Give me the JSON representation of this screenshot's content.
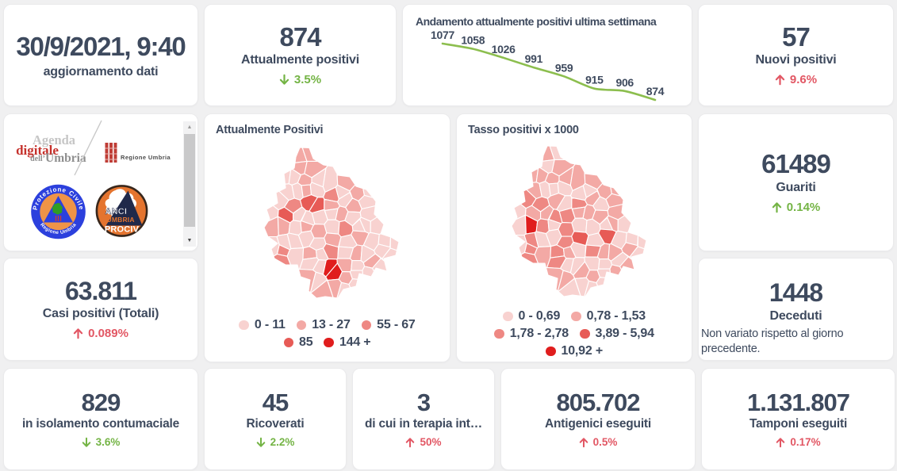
{
  "page": {
    "bg": "#f0f0f1"
  },
  "colors": {
    "dark": "#3e4a5e",
    "good": "#74b445",
    "bad": "#e25764",
    "line": "#8cbe4e",
    "card_bg": "#ffffff",
    "card_border": "#eaeaec"
  },
  "cards": {
    "date": {
      "value": "30/9/2021, 9:40",
      "label": "aggiornamento dati"
    },
    "attualmente_positivi": {
      "value": "874",
      "label": "Attualmente positivi",
      "arrow": "↓",
      "delta": "3.5%",
      "tone": "good"
    },
    "nuovi_positivi": {
      "value": "57",
      "label": "Nuovi positivi",
      "arrow": "↑",
      "delta": "9.6%",
      "tone": "bad"
    },
    "casi_positivi": {
      "value": "63.811",
      "label": "Casi positivi (Totali)",
      "arrow": "↑",
      "delta": "0.089%",
      "tone": "bad"
    },
    "guariti": {
      "value": "61489",
      "label": "Guariti",
      "arrow": "↑",
      "delta": "0.14%",
      "tone": "good"
    },
    "deceduti": {
      "value": "1448",
      "label": "Deceduti",
      "note": "Non variato rispetto al giorno precedente."
    },
    "isolamento": {
      "value": "829",
      "label": "in isolamento contumaciale",
      "arrow": "↓",
      "delta": "3.6%",
      "tone": "good"
    },
    "ricoverati": {
      "value": "45",
      "label": "Ricoverati",
      "arrow": "↓",
      "delta": "2.2%",
      "tone": "good"
    },
    "terapia_intensiva": {
      "value": "3",
      "label": "di cui in terapia int…",
      "arrow": "↑",
      "delta": "50%",
      "tone": "bad"
    },
    "antigenici": {
      "value": "805.702",
      "label": "Antigenici eseguiti",
      "arrow": "↑",
      "delta": "0.5%",
      "tone": "bad"
    },
    "tamponi": {
      "value": "1.131.807",
      "label": "Tamponi eseguiti",
      "arrow": "↑",
      "delta": "0.17%",
      "tone": "bad"
    }
  },
  "chart_data": [
    {
      "type": "line",
      "title": "Andamento attualmente positivi ultima settimana",
      "values": [
        1077,
        1058,
        1026,
        991,
        959,
        915,
        906,
        874
      ],
      "point_labels": [
        "1077",
        "1058",
        "1026",
        "991",
        "959",
        "915",
        "906",
        "874"
      ],
      "line_color": "#8cbe4e",
      "label_color": "#3e4a5e",
      "legend_position": "none",
      "grid": false
    },
    {
      "type": "choropleth",
      "title": "Attualmente Positivi",
      "legend": [
        {
          "label": "0 - 11",
          "color": "#f8d2d0"
        },
        {
          "label": "13 - 27",
          "color": "#f3a9a5"
        },
        {
          "label": "55 - 67",
          "color": "#ee8883"
        },
        {
          "label": "85",
          "color": "#e75b56"
        },
        {
          "label": "144 +",
          "color": "#e01d1d"
        }
      ],
      "legend_rows": [
        [
          0,
          1,
          2
        ],
        [
          3,
          4
        ]
      ],
      "cell_classes": [
        1,
        1,
        1,
        1,
        0,
        0,
        1,
        0,
        0,
        1,
        0,
        0,
        1,
        0,
        2,
        0,
        1,
        0,
        0,
        2,
        3,
        3,
        1,
        0,
        1,
        0,
        0,
        3,
        0,
        0,
        0,
        0,
        1,
        0,
        0,
        1,
        1,
        0,
        1,
        1,
        0,
        2,
        0,
        0,
        0,
        0,
        0,
        0,
        0,
        1,
        0,
        1,
        0,
        0,
        0,
        0,
        2,
        0,
        1,
        0,
        2,
        0,
        1,
        0,
        0,
        0,
        2,
        0,
        0,
        4,
        1,
        0,
        1,
        0,
        1,
        0,
        4,
        1,
        0,
        0,
        1,
        1,
        0,
        0
      ]
    },
    {
      "type": "choropleth",
      "title": "Tasso positivi x 1000",
      "legend": [
        {
          "label": "0 - 0,69",
          "color": "#f8d2d0"
        },
        {
          "label": "0,78 - 1,53",
          "color": "#f3a9a5"
        },
        {
          "label": "1,78 - 2,78",
          "color": "#ee8883"
        },
        {
          "label": "3,89 - 5,94",
          "color": "#e75b56"
        },
        {
          "label": "10,92 +",
          "color": "#e01d1d"
        }
      ],
      "legend_rows": [
        [
          0,
          1
        ],
        [
          2,
          3
        ],
        [
          4
        ]
      ],
      "cell_classes": [
        1,
        0,
        0,
        1,
        1,
        1,
        1,
        1,
        1,
        1,
        1,
        0,
        0,
        0,
        0,
        0,
        1,
        1,
        2,
        2,
        1,
        0,
        2,
        1,
        0,
        1,
        0,
        1,
        1,
        2,
        2,
        1,
        1,
        1,
        1,
        0,
        4,
        2,
        0,
        2,
        0,
        0,
        0,
        1,
        0,
        2,
        0,
        0,
        2,
        3,
        0,
        3,
        0,
        0,
        0,
        0,
        2,
        1,
        2,
        1,
        0,
        2,
        1,
        1,
        1,
        0,
        2,
        2,
        0,
        0,
        0,
        0,
        0,
        1,
        1,
        1,
        1,
        1,
        0,
        1,
        0,
        0,
        0,
        0
      ]
    }
  ],
  "map_geometry": {
    "width": 172,
    "height": 191,
    "cells": [
      "55,18.4 49.2,1.1 46,1 41,13 40,20.3",
      "68.5,18.4 63,15 58,1.5 49.2,1.1 55,18.4",
      "55.2,18.5 40,20.3 39,27 36.6,28.3 47.4,35.5 51.9,34.1",
      "55.2,18.5 51.9,34.1 61,39 79,27 81.3,23.9 76,23 68.5,18.4",
      "34.6,29.4 26,34 27.5,47.2 32.2,46.8",
      "32.2,46.8 36.1,48.4 43.4,45.6 47.4,35.5 36.6,28.3 34.6,29.4",
      "59.3,48 61,45 61,39 51.9,34.1 47.4,35.5 43.4,45.6 48.1,48.9",
      "61,45 75.3,50.7 79,27 61,39",
      "79,27 75.3,50.7 78,57.4 91.3,51.1 93.7,48.4 93.1,34.3 88,25 81.3,23.9",
      "115.8,48.1 109,38 94,36 93.1,34.3 93.7,48.4 109,55.8",
      "32.2,46.8 27.5,47.2 28,52 19.8,56.1 32,67.6 39.2,65 36.1,48.4",
      "43.4,45.6 36.1,48.4 39.2,65 46.5,67.3 50.2,64.1 48.1,48.9",
      "50.2,64.1 60.5,60.6 59.3,48 48.1,48.9",
      "60.5,60.6 68.5,63.8 75.5,63.8 78,57.4 75.3,50.7 61,45 59.3,48",
      "76.9,66.3 93.6,69.6 95.3,66.1 91.3,51.1 78,57.4 75.5,63.8",
      "109.1,57.8 109,55.8 93.7,48.4 91.3,51.1 95.3,66.1",
      "109,55.8 112.4,64.9 120,68.5 127.4,61.4 125.8,52.7 117,50 115.8,48.1",
      "127.4,61.4 138.2,64.2 130,54 125.8,52.7",
      "32,67.6 19.8,56.1 16,58 18,71 12.3,74.3 19.1,79.7 26.5,76.3",
      "46.5,67.3 39.2,65 32,67.6 26.5,76.3 37.6,84 48.8,75.9",
      "46.5,67.3 48.8,75.9 53.9,80.7 57.9,81.3 68.5,63.8 60.5,60.6 50.2,64.1",
      "76.8,79.3 76.9,66.3 75.5,63.8 68.5,63.8 57.9,81.3 61.3,83.6",
      "76.8,79.3 77.5,80.4 94,78.1 96.5,74.9 93.6,69.6 76.9,66.3",
      "93.6,69.6 96.5,74.9 103.6,76.7 112.4,64.9 109.1,57.8 95.3,66.1",
      "120,68.5 112.4,64.9 103.6,76.7 106.8,81.9 122.1,82.7 124.2,78.5",
      "127.4,61.4 120,68.5 124.2,78.5 141.3,74.6 142,69 138.2,64.2",
      "19.1,79.7 12.3,74.3 4,79 8,91 6.2,93.9 18.3,88.4",
      "37.6,92.8 37.6,84 26.5,76.3 19.1,79.7 18.5,88.1 33.7,96",
      "47,94.3 53.9,80.7 48.8,75.9 37.6,84 37.6,92.8",
      "63.3,98.9 65,97.6 61.3,83.6 57.9,81.3 53.9,80.7 48.1,93.6",
      "65,97.6 76.8,98 81.2,92.3 76.8,79.3 61.3,83.6",
      "81.2,92.3 91.1,92.1 94,78.1 77.5,80.4",
      "96,94.7 102.8,93.2 106.8,81.9 103.6,76.7 96.5,74.9 94,78.1 91.1,92.1",
      "106.8,81.9 102.8,93.2 112.3,99.8 123.2,89 122.1,82.7",
      "124.2,78.5 122.1,82.7 123.2,89 135.3,94.1 143.5,88.8 140,85 141.3,74.6",
      "6.2,93.9 1,102 5.8,113.5 17,113.5 19.3,112.1 18.3,88.4",
      "18.5,88.1 19.3,112.1 30.3,110.3 32.2,109 33.7,96",
      "37.6,92.8 33.7,96 32.2,109 44.4,111.6 48.2,108.1 47,94.3",
      "48.2,108.1 59.9,106.2 63.3,98.9 48.1,93.6 47,94.3",
      "64,115.1 76.7,115 79.9,108.8 76.8,98 65,97.6 63.3,98.9 59.9,106.2",
      "79.9,108.8 94.8,110.2 96,94.7 91.1,92.1 81.2,92.3 76.8,98",
      "110.7,110.9 113,106 112.3,99.8 102.8,93.2 96,94.7 94.8,110.2 98,113.9",
      "121.7,91.4 112.3,99.8 113,106 128.6,107.2",
      "135.1,108.3 135.3,94.1 123.2,89 121.7,91.4 128.6,107.2 133.1,109.3",
      "135.3,94.1 135.1,108.3 146.2,110.6 148.1,109.8 152,98 143.5,88.8",
      "19.3,112.1 17,113.5 20.2,123.8 33.4,129.9 34.9,128.6 30.3,110.3",
      "32.2,109 30.3,110.3 34.9,128.6 50.3,127.5 44.4,111.6",
      "48.2,108.1 44.4,111.6 50.3,127.5 58,125.8 64,115.1 59.9,106.2",
      "66.5,130.5 75.5,127.9 79,122.4 76.7,115 64,115.1 58,125.8",
      "98,113.9 94.8,110.2 79.9,108.8 76.7,115 79,122.4 94.6,126.6",
      "110.7,110.9 98,113.9 95.1,126 113.5,127.6 118.3,123.9",
      "126.3,124.4 133.1,109.3 128.6,107.2 113,106 110.7,110.9 118.3,123.9 124.5,125",
      "139.6,131 145.1,122.9 146.2,110.6 135.1,108.3 133.1,109.3 126.3,124.4",
      "146.2,110.6 145.1,122.9 159.7,126.6 160.5,113.8 148.1,109.8",
      "160.5,113.8 160.2,128 168.5,130.8 171,120",
      "17.5,135.5 20.2,123.8 17,113.5 5.8,113.5 18,122 10,129 13,138",
      "20.2,123.8 17.5,135.5 30.1,138.2 33.4,129.9",
      "45.7,154.4 49.9,142.2 50.6,127.7 34.9,128.6 33.4,129.9 30.1,138.2 34.4,149 43,149 44.6,155.1",
      "49.9,142.2 67.5,139.8 66.5,130.5 58,125.8 50.6,127.7",
      "67.5,139.8 69.7,142.7 79.3,143.2 82.1,141.6 75.5,127.9 66.5,130.5",
      "93.8,140.9 94.6,126.6 79,122.4 75.5,127.9 82.1,141.6 92.9,141.9",
      "113.5,127.6 95.1,126 93.8,140.9 109.4,141.2",
      "124.5,125 118.3,123.9 113.5,127.6 109.4,141.2 111.9,143.5 123.1,143.6",
      "141.3,135.1 139.6,131 126.3,124.4 124.5,125 123.1,143.6 126.3,146.3",
      "141.3,135.1 149.9,141.2 160.2,128 159.7,126.6 145.1,122.9 139.6,131",
      "152.8,144.4 152,141 167,137 168.5,130.8 160.2,128 149.9,141.2",
      "30.1,138.2 17.5,135.5 13,138 14,141 28,149 34.4,149",
      "49.9,142.2 45.7,154.4 62.5,155.5 69.7,142.7 67.5,139.8",
      "69.7,142.7 62.5,155.5 66.2,158.2 75.4,161 79.3,143.2",
      "93.4,147 92.9,141.9 82.1,141.6 79.3,143.2 75.4,161 78.8,164.2",
      "111.9,143.5 109.4,141.2 93.8,140.9 92.9,141.9 93.4,147 99.5,157.6 109.3,157.8 110.7,156.2",
      "127.6,150.9 126.3,146.3 123.1,143.6 111.9,143.5 110.7,156.2 125,156",
      "137.5,153.2 148.3,140.8 141.3,135.1 126.3,146.3 127.6,150.9",
      "137.5,153.2 139.6,157.3 142,153 156,157 152.8,144.4 148.3,140.8",
      "66.2,158.2 62.5,155.5 45.7,154.4 44.6,155.1 47,164 59,168 57,182 59.4,184.1",
      "80.5,168.1 78.8,164.2 75.4,161 66.2,158.2 59.4,184.1 59.9,184.6",
      "81,168.4 95.1,167.2 99.5,157.6 93.4,147 78.8,164.2",
      "109.3,157.8 99.5,157.6 95.1,167.2 98.5,171.3 107.9,173.5 112.4,166.7",
      "125,156 110.7,156.2 109.3,157.8 112.4,166.7 119.2,167.3 121,160 125.5,161.2",
      "125.5,161.2 136,164 139.6,157.3 137.5,153.2 127.6,150.9 125,156",
      "88.1,190.3 80.5,168.1 59.9,184.6 67,191 78,189",
      "98.5,171.3 95.1,167.2 81,168.4 88.1,190.3 92.9,190.9",
      "98.5,171.3 92.9,190.9 94,191 101,180 109.7,177.8 107.9,173.5",
      "109.7,177.8 117,176 119.2,167.3 112.4,166.7 107.9,173.5"
    ]
  },
  "logos": {
    "agenda_digitale": {
      "word1": "Agenda",
      "word2": "digitale",
      "word3a": "dell’",
      "word3b": "Umbria"
    },
    "regione_umbria": {
      "text": "Regione Umbria"
    },
    "protezione_civile": {
      "arc_top": "Protezione Civile",
      "arc_bottom": "Regione Umbria"
    },
    "anci_prociv": {
      "line1": "ANCI",
      "line2": "UMBRIA",
      "line3": "PROCIV"
    }
  },
  "scrollbar": {
    "up_glyph": "▲",
    "down_glyph": "▼"
  }
}
